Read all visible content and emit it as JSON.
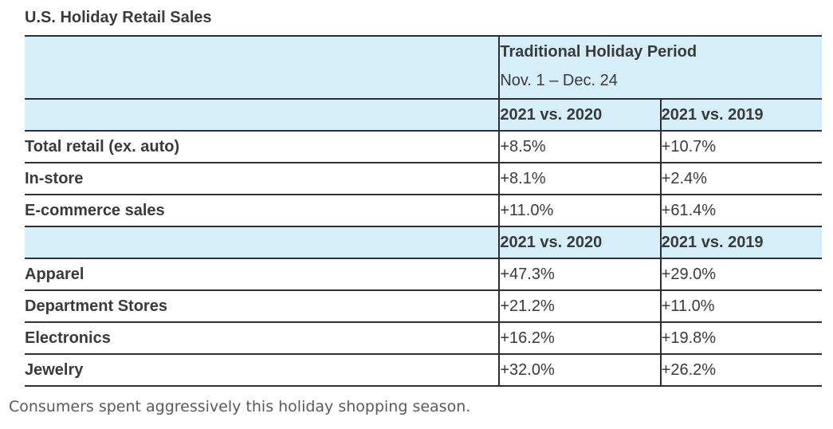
{
  "title": "U.S. Holiday Retail Sales",
  "period": {
    "title": "Traditional Holiday Period",
    "dates": "Nov. 1 – Dec. 24"
  },
  "section1": {
    "col2": "2021 vs. 2020",
    "col3": "2021 vs. 2019",
    "rows": [
      {
        "label": "Total retail (ex. auto)",
        "v2020": "+8.5%",
        "v2019": "+10.7%"
      },
      {
        "label": "In-store",
        "v2020": "+8.1%",
        "v2019": "+2.4%"
      },
      {
        "label": "E-commerce sales",
        "v2020": "+11.0%",
        "v2019": "+61.4%"
      }
    ]
  },
  "section2": {
    "col2": "2021 vs. 2020",
    "col3": "2021 vs. 2019",
    "rows": [
      {
        "label": "Apparel",
        "v2020": "+47.3%",
        "v2019": "+29.0%"
      },
      {
        "label": "Department Stores",
        "v2020": "+21.2%",
        "v2019": "+11.0%"
      },
      {
        "label": "Electronics",
        "v2020": "+16.2%",
        "v2019": "+19.8%"
      },
      {
        "label": "Jewelry",
        "v2020": "+32.0%",
        "v2019": "+26.2%"
      }
    ]
  },
  "caption": "Consumers spent aggressively this holiday shopping season.",
  "colors": {
    "header_bg": "#d6eefa",
    "border": "#2f2f2f"
  }
}
